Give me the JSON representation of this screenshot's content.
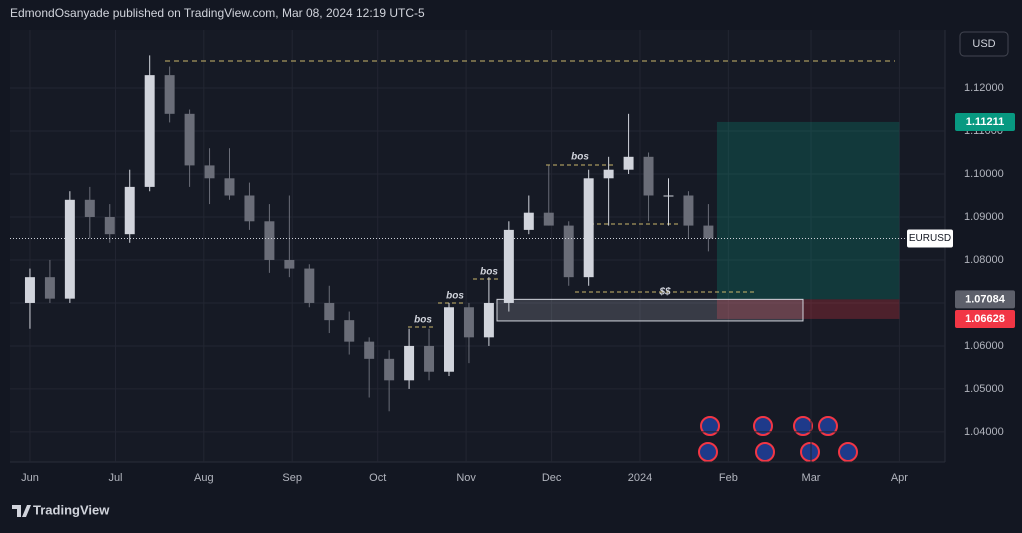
{
  "header": {
    "title": "EdmondOsanyade published on TradingView.com, Mar 08, 2024 12:19 UTC-5",
    "currency": "USD"
  },
  "footer": {
    "brand": "TradingView"
  },
  "chart_data": {
    "type": "candlestick",
    "symbol": "EURUSD",
    "up_color": "#d1d4dc",
    "down_color": "#6a6d78",
    "grid": true,
    "x": [
      0,
      7,
      14,
      21,
      28,
      35,
      42,
      49,
      56,
      63,
      70,
      77,
      84,
      91,
      98,
      105,
      112,
      119,
      126,
      133,
      140,
      147,
      154,
      161,
      168,
      175,
      182,
      189,
      196,
      203,
      210,
      217,
      224,
      231,
      238
    ],
    "open": [
      1.07,
      1.076,
      1.071,
      1.094,
      1.09,
      1.086,
      1.097,
      1.123,
      1.114,
      1.102,
      1.099,
      1.095,
      1.089,
      1.08,
      1.078,
      1.07,
      1.066,
      1.061,
      1.057,
      1.052,
      1.06,
      1.054,
      1.069,
      1.062,
      1.07,
      1.087,
      1.091,
      1.088,
      1.076,
      1.099,
      1.101,
      1.104,
      1.095,
      1.095,
      1.088
    ],
    "high": [
      1.078,
      1.08,
      1.096,
      1.097,
      1.093,
      1.101,
      1.1276,
      1.125,
      1.115,
      1.106,
      1.106,
      1.098,
      1.093,
      1.095,
      1.079,
      1.074,
      1.068,
      1.062,
      1.059,
      1.064,
      1.064,
      1.07,
      1.07,
      1.076,
      1.089,
      1.095,
      1.102,
      1.089,
      1.101,
      1.104,
      1.114,
      1.105,
      1.099,
      1.096,
      1.093
    ],
    "low": [
      1.064,
      1.07,
      1.07,
      1.085,
      1.084,
      1.084,
      1.096,
      1.112,
      1.097,
      1.093,
      1.094,
      1.087,
      1.077,
      1.076,
      1.069,
      1.063,
      1.058,
      1.048,
      1.0448,
      1.05,
      1.052,
      1.053,
      1.056,
      1.06,
      1.068,
      1.086,
      1.088,
      1.074,
      1.074,
      1.088,
      1.1,
      1.089,
      1.088,
      1.085,
      1.082
    ],
    "close": [
      1.076,
      1.071,
      1.094,
      1.09,
      1.086,
      1.097,
      1.123,
      1.114,
      1.102,
      1.099,
      1.095,
      1.089,
      1.08,
      1.078,
      1.07,
      1.066,
      1.061,
      1.057,
      1.052,
      1.06,
      1.054,
      1.069,
      1.062,
      1.07,
      1.087,
      1.091,
      1.088,
      1.076,
      1.099,
      1.101,
      1.104,
      1.095,
      1.095,
      1.088,
      1.085
    ],
    "xlim": [
      -7,
      321
    ],
    "xticks": [
      {
        "value": 0,
        "label": "Jun"
      },
      {
        "value": 30,
        "label": "Jul"
      },
      {
        "value": 61,
        "label": "Aug"
      },
      {
        "value": 92,
        "label": "Sep"
      },
      {
        "value": 122,
        "label": "Oct"
      },
      {
        "value": 153,
        "label": "Nov"
      },
      {
        "value": 183,
        "label": "Dec"
      },
      {
        "value": 214,
        "label": "2024"
      },
      {
        "value": 245,
        "label": "Feb"
      },
      {
        "value": 274,
        "label": "Mar"
      },
      {
        "value": 305,
        "label": "Apr"
      }
    ],
    "ylim": [
      1.033,
      1.1335
    ],
    "yticks": [
      {
        "value": 1.04,
        "label": "1.04000"
      },
      {
        "value": 1.05,
        "label": "1.05000"
      },
      {
        "value": 1.06,
        "label": "1.06000"
      },
      {
        "value": 1.07,
        "label": "1.07000"
      },
      {
        "value": 1.08,
        "label": "1.08000"
      },
      {
        "value": 1.09,
        "label": "1.09000"
      },
      {
        "value": 1.1,
        "label": "1.10000"
      },
      {
        "value": 1.11,
        "label": "1.11000"
      },
      {
        "value": 1.12,
        "label": "1.12000"
      }
    ],
    "position": {
      "x_start": 241,
      "x_end": 305,
      "target": {
        "value": 1.11211,
        "label": "1.11211"
      },
      "entry": {
        "value": 1.07084,
        "label": "1.07084"
      },
      "stop": {
        "value": 1.06628,
        "label": "1.06628"
      }
    },
    "annotations": [
      "bos",
      "bos",
      "bos",
      "bos",
      "$$"
    ]
  }
}
